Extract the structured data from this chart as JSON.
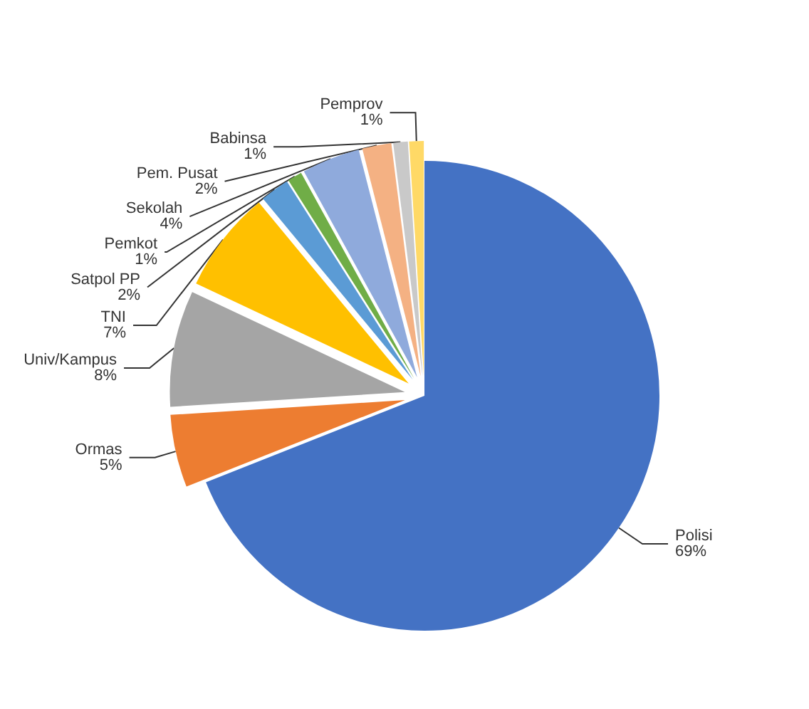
{
  "chart_data": {
    "type": "pie",
    "categories": [
      "Polisi",
      "Ormas",
      "Univ/Kampus",
      "TNI",
      "Satpol PP",
      "Pemkot",
      "Sekolah",
      "Pem. Pusat",
      "Babinsa",
      "Pemprov"
    ],
    "values": [
      69,
      5,
      8,
      7,
      2,
      1,
      4,
      2,
      1,
      1
    ],
    "colors": [
      "#4472c4",
      "#ed7d31",
      "#a5a5a5",
      "#ffc000",
      "#5b9bd5",
      "#70ad47",
      "#8faadc",
      "#f4b183",
      "#c9c9c9",
      "#ffd966"
    ],
    "value_labels": [
      "69%",
      "5%",
      "8%",
      "7%",
      "2%",
      "1%",
      "4%",
      "2%",
      "1%",
      "1%"
    ]
  }
}
